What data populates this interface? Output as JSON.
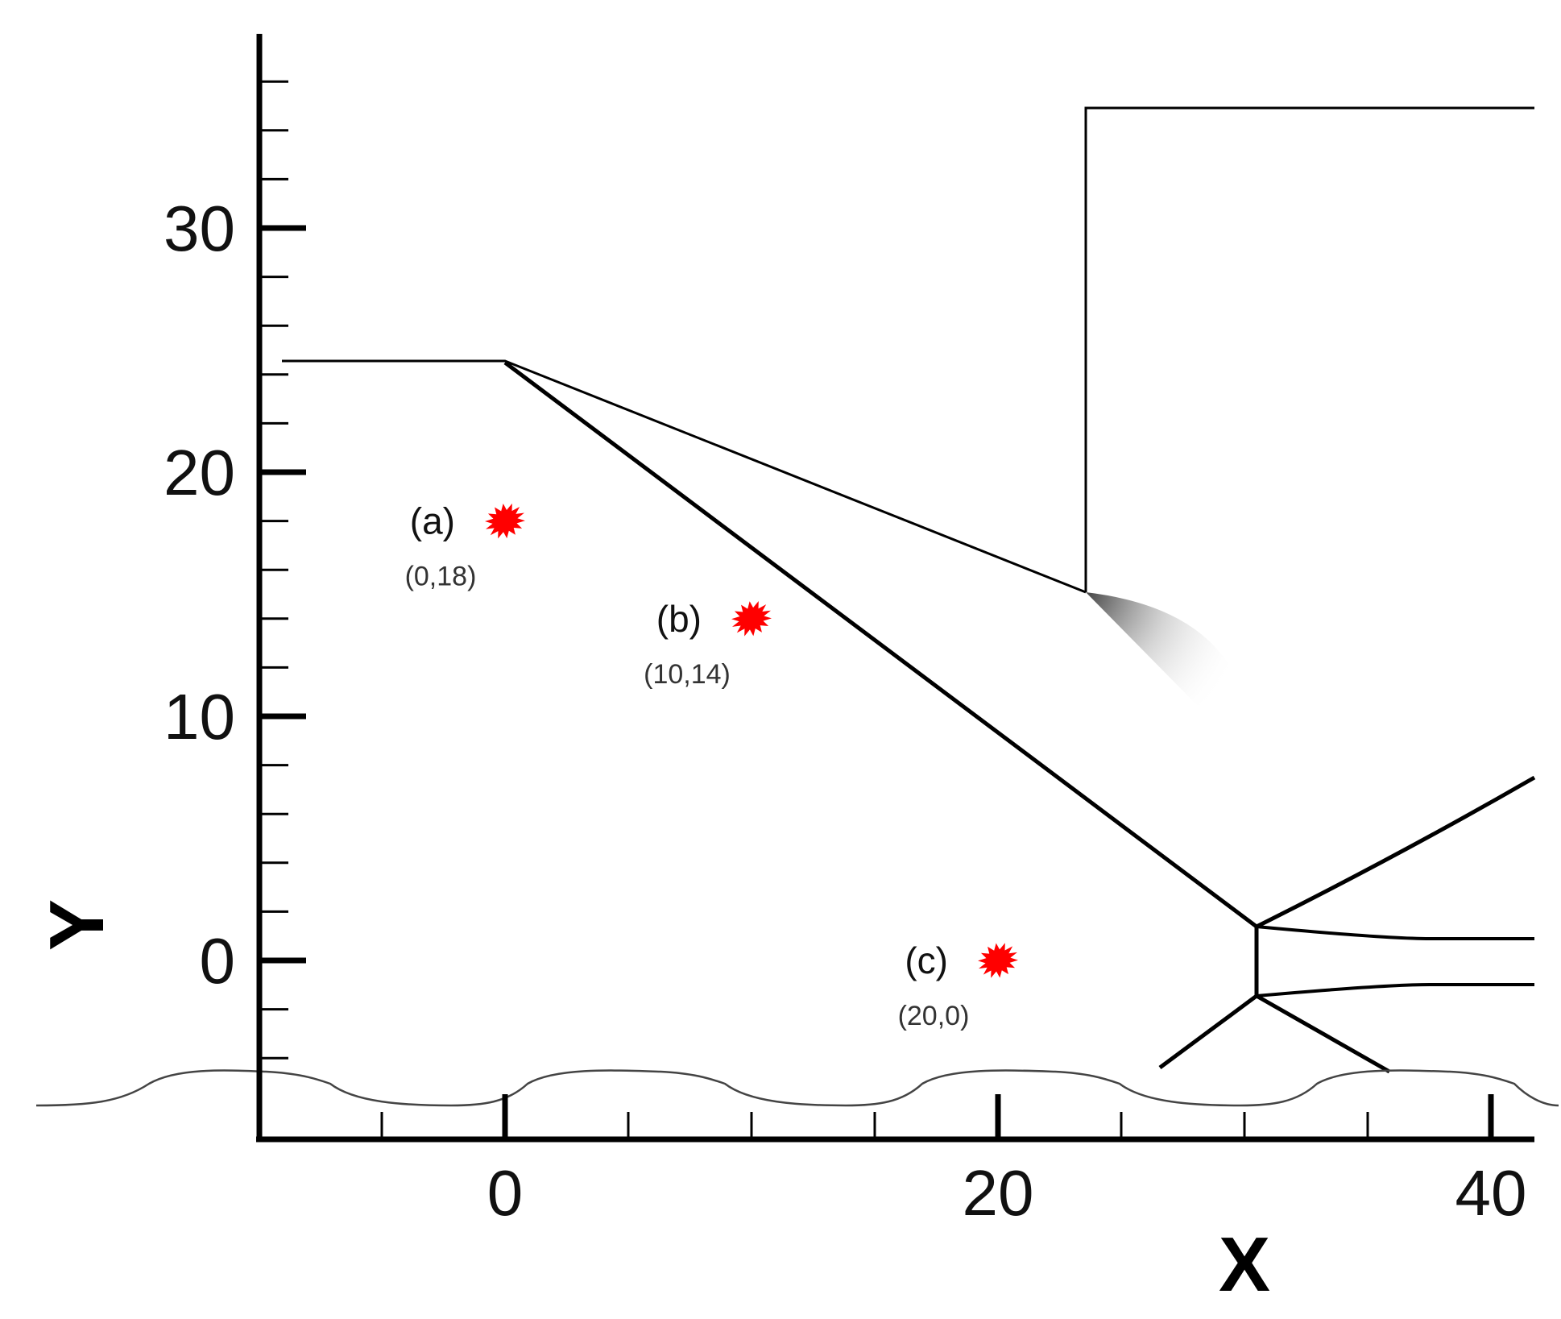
{
  "chart_data": {
    "type": "diagram",
    "xlabel": "X",
    "ylabel": "Y",
    "xlim": [
      -10,
      41
    ],
    "ylim": [
      -7,
      38
    ],
    "x_ticks": [
      0,
      20,
      40
    ],
    "y_ticks": [
      0,
      10,
      20,
      30
    ],
    "points": [
      {
        "label": "(a)",
        "coord_text": "(0,18)",
        "x": 0,
        "y": 18
      },
      {
        "label": "(b)",
        "coord_text": "(10,14)",
        "x": 10,
        "y": 14
      },
      {
        "label": "(c)",
        "coord_text": "(20,0)",
        "x": 20,
        "y": 0
      }
    ],
    "marker_color": "#ff0000",
    "line_color": "#000000"
  }
}
